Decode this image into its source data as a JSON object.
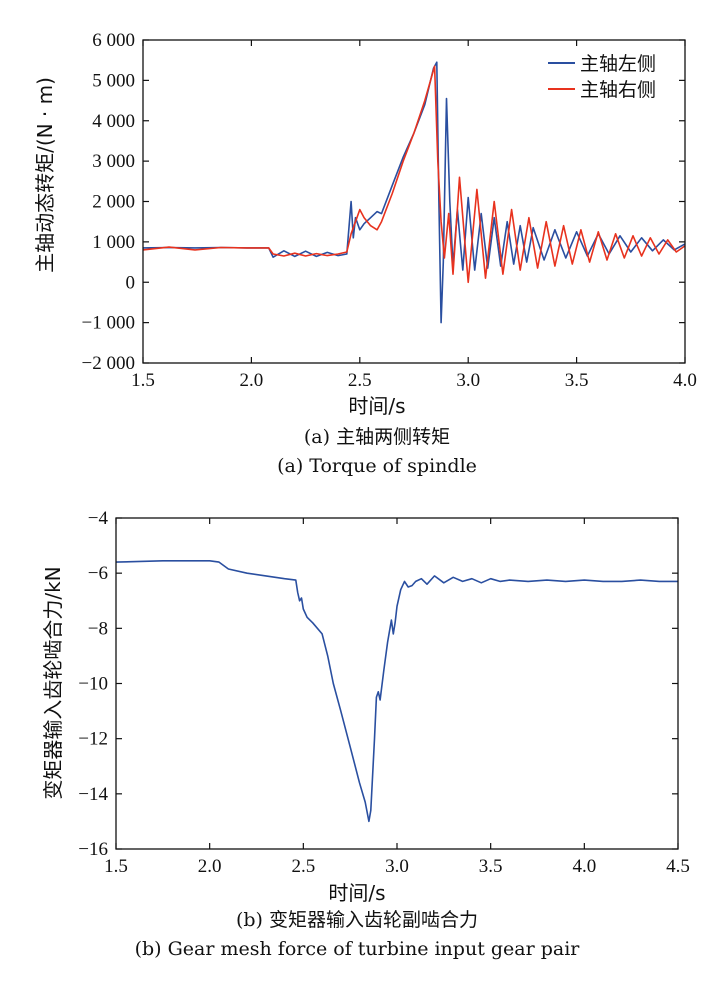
{
  "chart_data": [
    {
      "type": "line",
      "xlabel": "时间/s",
      "ylabel": "主轴动态转矩/(N · m)",
      "caption_cn": "(a) 主轴两侧转矩",
      "caption_en": "(a) Torque of spindle",
      "xlim": [
        1.5,
        4.0
      ],
      "ylim": [
        -2000,
        6000
      ],
      "x_ticks": [
        "1.5",
        "2.0",
        "2.5",
        "3.0",
        "3.5",
        "4.0"
      ],
      "y_ticks": [
        "6 000",
        "5 000",
        "4 000",
        "3 000",
        "2 000",
        "1 000",
        "0",
        "−1 000",
        "−2 000"
      ],
      "legend_position": "top-right",
      "colors": {
        "left": "#2a4fa0",
        "right": "#e8321e"
      },
      "series": [
        {
          "name": "主轴左侧",
          "color": "#2a4fa0",
          "x": [
            1.5,
            1.62,
            1.74,
            1.86,
            1.98,
            2.08,
            2.1,
            2.15,
            2.2,
            2.25,
            2.3,
            2.35,
            2.4,
            2.44,
            2.46,
            2.47,
            2.48,
            2.5,
            2.52,
            2.55,
            2.58,
            2.6,
            2.65,
            2.7,
            2.75,
            2.8,
            2.84,
            2.855,
            2.865,
            2.875,
            2.885,
            2.9,
            2.915,
            2.93,
            2.95,
            2.975,
            3.0,
            3.03,
            3.06,
            3.09,
            3.12,
            3.15,
            3.18,
            3.21,
            3.24,
            3.27,
            3.3,
            3.35,
            3.4,
            3.45,
            3.5,
            3.55,
            3.6,
            3.65,
            3.7,
            3.75,
            3.8,
            3.85,
            3.9,
            3.95,
            4.0
          ],
          "y": [
            850,
            860,
            850,
            860,
            850,
            850,
            620,
            780,
            640,
            770,
            640,
            740,
            660,
            700,
            2000,
            1100,
            1600,
            1300,
            1450,
            1600,
            1750,
            1700,
            2400,
            3100,
            3700,
            4400,
            5300,
            5450,
            2000,
            -1000,
            500,
            4550,
            2000,
            400,
            1800,
            300,
            2100,
            300,
            1700,
            350,
            1600,
            400,
            1500,
            450,
            1400,
            500,
            1350,
            550,
            1300,
            600,
            1250,
            650,
            1200,
            700,
            1150,
            750,
            1100,
            780,
            1050,
            800,
            950
          ]
        },
        {
          "name": "主轴右侧",
          "color": "#e8321e",
          "x": [
            1.5,
            1.62,
            1.74,
            1.86,
            1.98,
            2.08,
            2.1,
            2.15,
            2.2,
            2.25,
            2.3,
            2.35,
            2.4,
            2.44,
            2.46,
            2.48,
            2.5,
            2.52,
            2.55,
            2.58,
            2.6,
            2.65,
            2.7,
            2.75,
            2.8,
            2.845,
            2.86,
            2.875,
            2.89,
            2.91,
            2.93,
            2.96,
            3.0,
            3.04,
            3.08,
            3.12,
            3.16,
            3.2,
            3.24,
            3.28,
            3.32,
            3.36,
            3.4,
            3.44,
            3.48,
            3.52,
            3.56,
            3.6,
            3.64,
            3.68,
            3.72,
            3.76,
            3.8,
            3.84,
            3.88,
            3.92,
            3.96,
            4.0
          ],
          "y": [
            800,
            870,
            800,
            860,
            850,
            850,
            700,
            650,
            720,
            650,
            710,
            660,
            700,
            750,
            1200,
            1500,
            1800,
            1600,
            1400,
            1300,
            1500,
            2200,
            3000,
            3700,
            4500,
            5350,
            3000,
            1500,
            600,
            1700,
            200,
            2600,
            0,
            2300,
            100,
            2000,
            200,
            1800,
            300,
            1600,
            350,
            1500,
            400,
            1400,
            450,
            1300,
            500,
            1250,
            550,
            1200,
            600,
            1150,
            650,
            1100,
            700,
            1050,
            750,
            900
          ]
        }
      ]
    },
    {
      "type": "line",
      "xlabel": "时间/s",
      "ylabel": "变矩器输入齿轮啮合力/kN",
      "caption_cn": "(b) 变矩器输入齿轮副啮合力",
      "caption_en": "(b) Gear mesh force of turbine input gear pair",
      "xlim": [
        1.5,
        4.5
      ],
      "ylim": [
        -16,
        -4
      ],
      "x_ticks": [
        "1.5",
        "2.0",
        "2.5",
        "3.0",
        "3.5",
        "4.0",
        "4.5"
      ],
      "y_ticks": [
        "−4",
        "−6",
        "−8",
        "−10",
        "−12",
        "−14",
        "−16"
      ],
      "colors": {
        "line": "#2a4fa0"
      },
      "series": [
        {
          "color": "#2a4fa0",
          "x": [
            1.5,
            1.75,
            2.0,
            2.05,
            2.1,
            2.2,
            2.3,
            2.4,
            2.46,
            2.47,
            2.48,
            2.49,
            2.5,
            2.52,
            2.55,
            2.6,
            2.63,
            2.66,
            2.7,
            2.75,
            2.8,
            2.83,
            2.85,
            2.86,
            2.88,
            2.89,
            2.9,
            2.91,
            2.93,
            2.95,
            2.97,
            2.98,
            2.99,
            3.0,
            3.02,
            3.04,
            3.06,
            3.08,
            3.1,
            3.13,
            3.16,
            3.2,
            3.25,
            3.3,
            3.35,
            3.4,
            3.45,
            3.5,
            3.55,
            3.6,
            3.7,
            3.8,
            3.9,
            4.0,
            4.1,
            4.2,
            4.3,
            4.4,
            4.5
          ],
          "y": [
            -5.6,
            -5.55,
            -5.55,
            -5.6,
            -5.85,
            -6.0,
            -6.1,
            -6.2,
            -6.25,
            -6.7,
            -7.0,
            -6.9,
            -7.3,
            -7.6,
            -7.8,
            -8.2,
            -9.0,
            -10.0,
            -11.0,
            -12.3,
            -13.6,
            -14.3,
            -15.0,
            -14.6,
            -12.0,
            -10.5,
            -10.3,
            -10.6,
            -9.5,
            -8.5,
            -7.7,
            -8.2,
            -7.8,
            -7.2,
            -6.6,
            -6.3,
            -6.5,
            -6.45,
            -6.3,
            -6.2,
            -6.4,
            -6.1,
            -6.35,
            -6.15,
            -6.3,
            -6.2,
            -6.35,
            -6.2,
            -6.3,
            -6.25,
            -6.3,
            -6.25,
            -6.3,
            -6.25,
            -6.3,
            -6.3,
            -6.25,
            -6.3,
            -6.3
          ]
        }
      ]
    }
  ],
  "legend": {
    "left_label": "主轴左侧",
    "right_label": "主轴右侧"
  }
}
